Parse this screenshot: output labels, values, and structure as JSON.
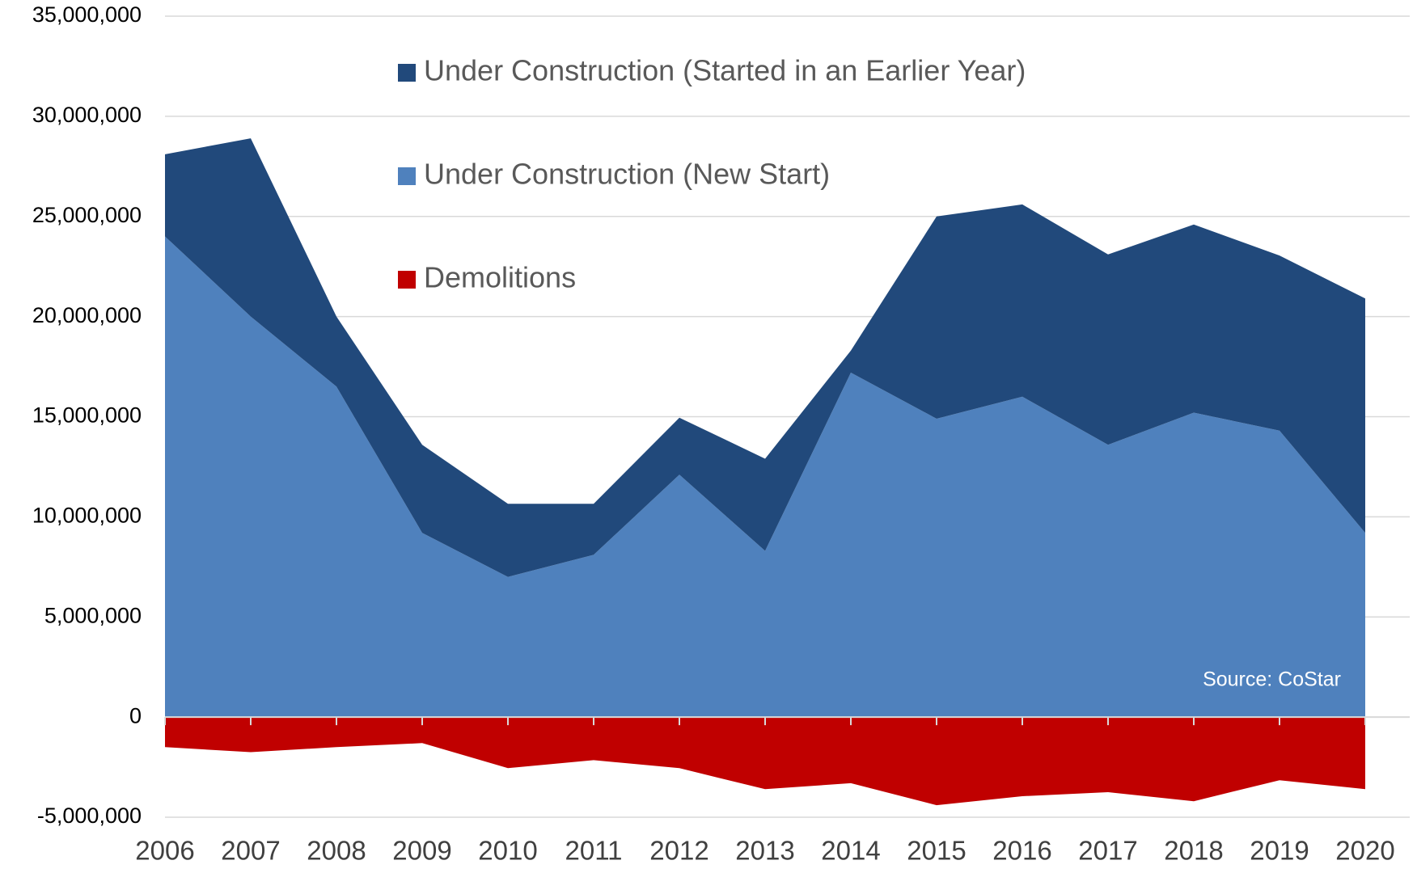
{
  "chart_data": {
    "type": "stacked_area",
    "categories": [
      "2006",
      "2007",
      "2008",
      "2009",
      "2010",
      "2011",
      "2012",
      "2013",
      "2014",
      "2015",
      "2016",
      "2017",
      "2018",
      "2019",
      "2020"
    ],
    "series": [
      {
        "name": "Under Construction (Started in an Earlier Year)",
        "color": "#21497b",
        "values": [
          4100000,
          8900000,
          3500000,
          4400000,
          3650000,
          2550000,
          2850000,
          4600000,
          1100000,
          10100000,
          9600000,
          9500000,
          9400000,
          8750000,
          11700000
        ]
      },
      {
        "name": "Under Construction (New Start)",
        "color": "#4f81bd",
        "values": [
          24000000,
          20000000,
          16500000,
          9200000,
          7000000,
          8100000,
          12100000,
          8300000,
          17200000,
          14900000,
          16000000,
          13600000,
          15200000,
          14300000,
          9200000
        ]
      },
      {
        "name": "Demolitions",
        "color": "#c00000",
        "values": [
          -1500000,
          -1750000,
          -1500000,
          -1300000,
          -2550000,
          -2150000,
          -2550000,
          -3600000,
          -3300000,
          -4400000,
          -3950000,
          -3750000,
          -4200000,
          -3150000,
          -3600000
        ]
      }
    ],
    "ylim": [
      -5000000,
      35000000
    ],
    "yticks": [
      {
        "value": -5000000,
        "label": "-5,000,000"
      },
      0,
      {
        "value": 5000000,
        "label": "5,000,000"
      },
      {
        "value": 10000000,
        "label": "10,000,000"
      },
      {
        "value": 15000000,
        "label": "15,000,000"
      },
      {
        "value": 20000000,
        "label": "20,000,000"
      },
      {
        "value": 25000000,
        "label": "25,000,000"
      },
      {
        "value": 30000000,
        "label": "30,000,000"
      },
      {
        "value": 35000000,
        "label": "35,000,000"
      }
    ],
    "grid": true,
    "annotation": "Source: CoStar"
  }
}
